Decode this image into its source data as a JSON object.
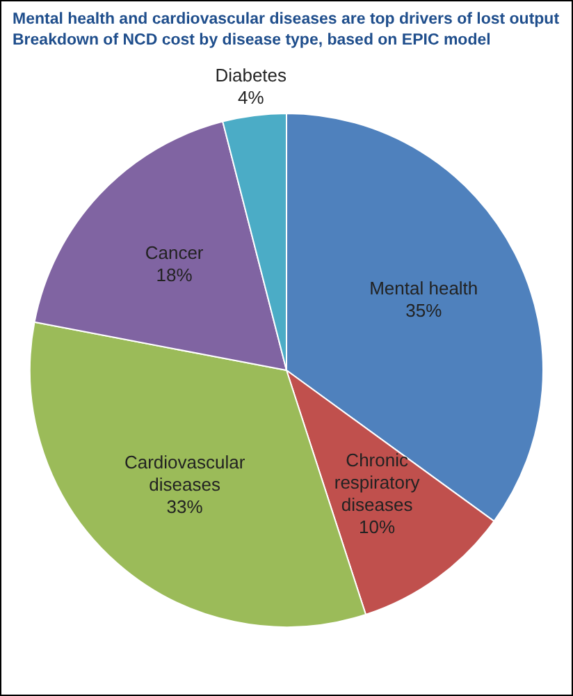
{
  "chart_data": {
    "type": "pie",
    "title": "Mental health and cardiovascular diseases are top drivers of lost output",
    "subtitle": "Breakdown of NCD cost by disease type, based on EPIC model",
    "categories": [
      "Mental health",
      "Chronic respiratory diseases",
      "Cardiovascular diseases",
      "Cancer",
      "Diabetes"
    ],
    "values": [
      35,
      10,
      33,
      18,
      4
    ],
    "colors": [
      "#4f81bd",
      "#c0504d",
      "#9bbb59",
      "#8064a2",
      "#4bacc6"
    ],
    "value_labels": [
      "35%",
      "10%",
      "33%",
      "18%",
      "4%"
    ],
    "legend": false
  }
}
